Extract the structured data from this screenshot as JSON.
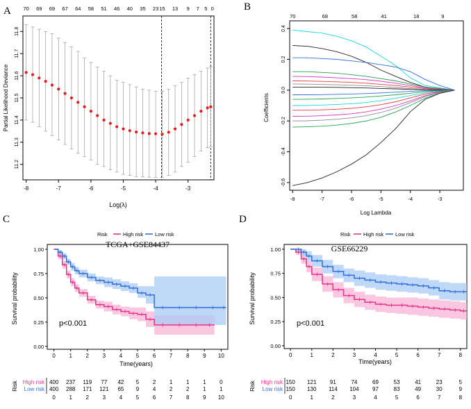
{
  "colors": {
    "high_risk": "#E8308C",
    "low_risk": "#2F6FD8",
    "high_band": "#F7B6D6",
    "low_band": "#A9CBF5",
    "overlap": "#B9A7E3",
    "cv_points": "#E41A1C"
  },
  "panels": {
    "a": "A",
    "b": "B",
    "c": "C",
    "d": "D"
  },
  "chart_data": [
    {
      "panel": "A",
      "type": "scatter",
      "xlabel": "Log(λ)",
      "ylabel": "Partial Likelihood Deviance",
      "xlim": [
        -8.1,
        -2.2
      ],
      "ylim": [
        11.13,
        11.87
      ],
      "xticks": [
        -8,
        -7,
        -6,
        -5,
        -4,
        -3
      ],
      "yticks": [
        11.2,
        11.3,
        11.4,
        11.5,
        11.6,
        11.7,
        11.8
      ],
      "top_axis_values": [
        -8.0,
        -7.6,
        -7.2,
        -6.8,
        -6.4,
        -6.0,
        -5.6,
        -5.2,
        -4.8,
        -4.4,
        -4.0,
        -3.6,
        -3.2,
        -2.8,
        -2.45
      ],
      "top_axis_labels": [
        "70",
        "69",
        "69",
        "67",
        "64",
        "58",
        "51",
        "46",
        "40",
        "35",
        "23",
        "15",
        "13",
        "9",
        "7",
        "5",
        "0"
      ],
      "top_axis_positions": [
        -8.0,
        -7.6,
        -7.2,
        -6.8,
        -6.4,
        -6.0,
        -5.6,
        -5.2,
        -4.8,
        -4.4,
        -4.0,
        -3.8,
        -3.4,
        -3.0,
        -2.7,
        -2.45,
        -2.25
      ],
      "vlines": [
        -3.82,
        -2.3
      ],
      "x": [
        -8.0,
        -7.8,
        -7.6,
        -7.4,
        -7.2,
        -7.0,
        -6.8,
        -6.6,
        -6.4,
        -6.2,
        -6.0,
        -5.8,
        -5.6,
        -5.4,
        -5.2,
        -5.0,
        -4.8,
        -4.6,
        -4.4,
        -4.2,
        -4.0,
        -3.8,
        -3.6,
        -3.4,
        -3.2,
        -3.0,
        -2.8,
        -2.6,
        -2.4,
        -2.3
      ],
      "y": [
        11.615,
        11.605,
        11.59,
        11.575,
        11.558,
        11.54,
        11.52,
        11.5,
        11.48,
        11.46,
        11.44,
        11.42,
        11.4,
        11.385,
        11.37,
        11.36,
        11.352,
        11.346,
        11.342,
        11.339,
        11.338,
        11.336,
        11.345,
        11.36,
        11.38,
        11.4,
        11.42,
        11.44,
        11.455,
        11.46
      ],
      "ci_upper": [
        11.83,
        11.82,
        11.81,
        11.8,
        11.79,
        11.77,
        11.75,
        11.73,
        11.71,
        11.68,
        11.66,
        11.64,
        11.62,
        11.6,
        11.58,
        11.57,
        11.56,
        11.55,
        11.54,
        11.535,
        11.53,
        11.53,
        11.54,
        11.555,
        11.57,
        11.59,
        11.605,
        11.62,
        11.635,
        11.64
      ],
      "ci_lower": [
        11.4,
        11.39,
        11.37,
        11.35,
        11.33,
        11.31,
        11.29,
        11.27,
        11.25,
        11.235,
        11.22,
        11.2,
        11.19,
        11.175,
        11.165,
        11.155,
        11.15,
        11.145,
        11.143,
        11.142,
        11.141,
        11.14,
        11.15,
        11.165,
        11.19,
        11.21,
        11.235,
        11.26,
        11.275,
        11.28
      ]
    },
    {
      "panel": "B",
      "type": "line",
      "xlabel": "Log Lambda",
      "ylabel": "Coefficients",
      "xlim": [
        -8.1,
        -2.2
      ],
      "ylim": [
        -0.65,
        0.45
      ],
      "xticks": [
        -8,
        -7,
        -6,
        -5,
        -4,
        -3
      ],
      "yticks": [
        -0.6,
        -0.4,
        -0.2,
        0.0,
        0.2,
        0.4
      ],
      "top_axis_labels": [
        "70",
        "68",
        "58",
        "41",
        "18",
        "9"
      ],
      "top_axis_positions": [
        -8.0,
        -6.9,
        -5.9,
        -4.9,
        -3.8,
        -2.9
      ],
      "x": [
        -8.0,
        -7.5,
        -7.0,
        -6.5,
        -6.0,
        -5.5,
        -5.0,
        -4.5,
        -4.0,
        -3.5,
        -3.0,
        -2.5
      ],
      "series": [
        {
          "name": "cyan",
          "color": "#18D5E8",
          "values": [
            0.39,
            0.38,
            0.37,
            0.35,
            0.32,
            0.28,
            0.22,
            0.16,
            0.08,
            0.03,
            0.015,
            0.0
          ]
        },
        {
          "name": "black-top",
          "color": "#222222",
          "values": [
            0.29,
            0.285,
            0.27,
            0.25,
            0.22,
            0.18,
            0.13,
            0.09,
            0.05,
            0.02,
            0.01,
            0.0
          ]
        },
        {
          "name": "blue",
          "color": "#2F6FD8",
          "values": [
            0.21,
            0.21,
            0.205,
            0.2,
            0.19,
            0.18,
            0.165,
            0.15,
            0.12,
            0.07,
            0.03,
            0.0
          ]
        },
        {
          "name": "green",
          "color": "#22A24A",
          "values": [
            0.12,
            0.12,
            0.115,
            0.11,
            0.1,
            0.09,
            0.075,
            0.06,
            0.04,
            0.02,
            0.01,
            0.0
          ]
        },
        {
          "name": "magenta",
          "color": "#D630C8",
          "values": [
            0.09,
            0.088,
            0.085,
            0.08,
            0.075,
            0.068,
            0.058,
            0.045,
            0.03,
            0.015,
            0.006,
            0.0
          ]
        },
        {
          "name": "red",
          "color": "#E03A3A",
          "values": [
            0.06,
            0.059,
            0.057,
            0.054,
            0.05,
            0.045,
            0.038,
            0.03,
            0.02,
            0.01,
            0.004,
            0.0
          ]
        },
        {
          "name": "gray",
          "color": "#8A8A8A",
          "values": [
            0.04,
            0.039,
            0.037,
            0.035,
            0.032,
            0.028,
            0.023,
            0.017,
            0.01,
            0.005,
            0.002,
            0.0
          ]
        },
        {
          "name": "black-mid",
          "color": "#222222",
          "values": [
            0.02,
            0.02,
            0.019,
            0.018,
            0.016,
            0.014,
            0.011,
            0.008,
            0.005,
            0.002,
            0.001,
            0.0
          ]
        },
        {
          "name": "blue-low",
          "color": "#2F6FD8",
          "values": [
            -0.03,
            -0.03,
            -0.029,
            -0.027,
            -0.025,
            -0.022,
            -0.018,
            -0.013,
            -0.008,
            -0.004,
            -0.002,
            0.0
          ]
        },
        {
          "name": "green-low",
          "color": "#22A24A",
          "values": [
            -0.06,
            -0.059,
            -0.057,
            -0.054,
            -0.05,
            -0.045,
            -0.038,
            -0.03,
            -0.02,
            -0.01,
            -0.004,
            0.0
          ]
        },
        {
          "name": "cyan-low",
          "color": "#18D5E8",
          "values": [
            -0.1,
            -0.099,
            -0.097,
            -0.093,
            -0.088,
            -0.08,
            -0.068,
            -0.053,
            -0.035,
            -0.018,
            -0.007,
            0.0
          ]
        },
        {
          "name": "red-low",
          "color": "#E03A3A",
          "values": [
            -0.13,
            -0.13,
            -0.128,
            -0.124,
            -0.118,
            -0.108,
            -0.094,
            -0.075,
            -0.05,
            -0.025,
            -0.01,
            0.0
          ]
        },
        {
          "name": "magenta-low",
          "color": "#D630C8",
          "values": [
            -0.17,
            -0.169,
            -0.166,
            -0.161,
            -0.153,
            -0.141,
            -0.123,
            -0.1,
            -0.07,
            -0.036,
            -0.013,
            0.0
          ]
        },
        {
          "name": "gray-low",
          "color": "#8A8A8A",
          "values": [
            -0.2,
            -0.199,
            -0.195,
            -0.189,
            -0.18,
            -0.166,
            -0.145,
            -0.117,
            -0.081,
            -0.042,
            -0.015,
            0.0
          ]
        },
        {
          "name": "green-bottom",
          "color": "#22A24A",
          "values": [
            -0.24,
            -0.238,
            -0.234,
            -0.227,
            -0.216,
            -0.2,
            -0.176,
            -0.142,
            -0.1,
            -0.052,
            -0.019,
            0.0
          ]
        },
        {
          "name": "black-bottom",
          "color": "#222222",
          "values": [
            -0.62,
            -0.6,
            -0.57,
            -0.53,
            -0.48,
            -0.42,
            -0.34,
            -0.25,
            -0.14,
            -0.06,
            -0.02,
            0.0
          ]
        }
      ]
    },
    {
      "panel": "C",
      "type": "line",
      "title": "TCGA+GSE84437",
      "xlabel": "Time(years)",
      "ylabel": "Survival probability",
      "xlim": [
        -0.4,
        10.4
      ],
      "ylim": [
        -0.03,
        1.05
      ],
      "xticks": [
        0,
        1,
        2,
        3,
        4,
        5,
        6,
        7,
        8,
        9,
        10
      ],
      "yticks": [
        "0.00",
        "0.25",
        "0.50",
        "0.75",
        "1.00"
      ],
      "legend": {
        "title": "Risk",
        "entries": [
          "High risk",
          "Low risk"
        ]
      },
      "pvalue": "p<0.001",
      "series": [
        {
          "name": "High risk",
          "x": [
            0,
            0.25,
            0.5,
            0.75,
            1,
            1.25,
            1.5,
            2,
            2.5,
            3,
            3.5,
            4,
            4.5,
            5,
            5.5,
            6,
            7,
            8,
            9,
            9.6
          ],
          "values": [
            1.0,
            0.93,
            0.84,
            0.74,
            0.66,
            0.6,
            0.55,
            0.48,
            0.43,
            0.41,
            0.38,
            0.36,
            0.34,
            0.33,
            0.28,
            0.22,
            0.22,
            0.22,
            0.22,
            0.22
          ],
          "lower": [
            1.0,
            0.9,
            0.8,
            0.7,
            0.62,
            0.56,
            0.51,
            0.44,
            0.39,
            0.36,
            0.33,
            0.31,
            0.28,
            0.26,
            0.2,
            0.12,
            0.12,
            0.12,
            0.12,
            0.12
          ],
          "upper": [
            1.0,
            0.96,
            0.88,
            0.78,
            0.7,
            0.64,
            0.59,
            0.52,
            0.47,
            0.46,
            0.43,
            0.41,
            0.4,
            0.4,
            0.36,
            0.32,
            0.32,
            0.32,
            0.32,
            0.32
          ]
        },
        {
          "name": "Low risk",
          "x": [
            0,
            0.25,
            0.5,
            0.75,
            1,
            1.25,
            1.5,
            2,
            2.5,
            3,
            3.5,
            4,
            4.5,
            5,
            5.5,
            6,
            7,
            8,
            9,
            10,
            10.3
          ],
          "values": [
            1.0,
            0.97,
            0.93,
            0.87,
            0.82,
            0.78,
            0.75,
            0.71,
            0.68,
            0.66,
            0.64,
            0.62,
            0.6,
            0.55,
            0.53,
            0.4,
            0.4,
            0.4,
            0.4,
            0.4,
            0.4
          ],
          "lower": [
            1.0,
            0.95,
            0.9,
            0.84,
            0.78,
            0.74,
            0.71,
            0.67,
            0.64,
            0.61,
            0.59,
            0.57,
            0.55,
            0.5,
            0.44,
            0.22,
            0.22,
            0.22,
            0.22,
            0.22,
            0.22
          ],
          "upper": [
            1.0,
            0.99,
            0.96,
            0.9,
            0.86,
            0.82,
            0.79,
            0.75,
            0.72,
            0.71,
            0.69,
            0.67,
            0.65,
            0.62,
            0.62,
            0.72,
            0.72,
            0.72,
            0.72,
            0.72,
            0.72
          ]
        }
      ],
      "risk_table": {
        "label": "Risk",
        "times": [
          0,
          1,
          2,
          3,
          4,
          5,
          6,
          7,
          8,
          9,
          10
        ],
        "rows": [
          {
            "name": "High risk",
            "values": [
              "400",
              "237",
              "119",
              "77",
              "42",
              "5",
              "2",
              "1",
              "1",
              "1",
              "0"
            ]
          },
          {
            "name": "Low risk",
            "values": [
              "400",
              "288",
              "171",
              "121",
              "65",
              "9",
              "4",
              "2",
              "2",
              "1",
              "1"
            ]
          }
        ]
      }
    },
    {
      "panel": "D",
      "type": "line",
      "title": "GSE66229",
      "xlabel": "Time(years)",
      "ylabel": "Survival probability",
      "xlim": [
        -0.3,
        8.3
      ],
      "ylim": [
        -0.03,
        1.05
      ],
      "xticks": [
        0,
        1,
        2,
        3,
        4,
        5,
        6,
        7,
        8
      ],
      "yticks": [
        "0.00",
        "0.25",
        "0.50",
        "0.75",
        "1.00"
      ],
      "legend": {
        "title": "Risk",
        "entries": [
          "High risk",
          "Low risk"
        ]
      },
      "pvalue": "p<0.001",
      "series": [
        {
          "name": "High risk",
          "x": [
            0,
            0.25,
            0.5,
            0.75,
            1,
            1.5,
            2,
            2.5,
            3,
            3.5,
            4,
            4.5,
            5,
            5.5,
            6,
            6.5,
            7,
            7.5,
            8,
            8.3
          ],
          "values": [
            1.0,
            0.97,
            0.9,
            0.82,
            0.74,
            0.64,
            0.58,
            0.52,
            0.48,
            0.45,
            0.43,
            0.42,
            0.42,
            0.41,
            0.4,
            0.39,
            0.38,
            0.37,
            0.36,
            0.36
          ],
          "lower": [
            1.0,
            0.94,
            0.85,
            0.76,
            0.67,
            0.56,
            0.5,
            0.44,
            0.4,
            0.37,
            0.35,
            0.34,
            0.33,
            0.32,
            0.31,
            0.3,
            0.29,
            0.28,
            0.27,
            0.27
          ],
          "upper": [
            1.0,
            1.0,
            0.95,
            0.88,
            0.81,
            0.72,
            0.66,
            0.6,
            0.56,
            0.53,
            0.51,
            0.5,
            0.5,
            0.5,
            0.49,
            0.48,
            0.47,
            0.46,
            0.45,
            0.45
          ]
        },
        {
          "name": "Low risk",
          "x": [
            0,
            0.25,
            0.5,
            0.75,
            1,
            1.5,
            2,
            2.5,
            3,
            3.5,
            4,
            4.5,
            5,
            5.5,
            6,
            6.5,
            7,
            7.5,
            8,
            8.3
          ],
          "values": [
            1.0,
            1.0,
            0.97,
            0.93,
            0.88,
            0.82,
            0.77,
            0.73,
            0.7,
            0.68,
            0.66,
            0.65,
            0.64,
            0.63,
            0.62,
            0.6,
            0.57,
            0.56,
            0.56,
            0.56
          ],
          "lower": [
            1.0,
            0.98,
            0.93,
            0.88,
            0.82,
            0.75,
            0.7,
            0.66,
            0.62,
            0.6,
            0.58,
            0.57,
            0.56,
            0.55,
            0.54,
            0.52,
            0.48,
            0.47,
            0.47,
            0.47
          ],
          "upper": [
            1.0,
            1.0,
            1.0,
            0.98,
            0.94,
            0.89,
            0.84,
            0.8,
            0.78,
            0.76,
            0.74,
            0.73,
            0.72,
            0.71,
            0.7,
            0.68,
            0.66,
            0.65,
            0.65,
            0.65
          ]
        }
      ],
      "risk_table": {
        "label": "Risk",
        "times": [
          0,
          1,
          2,
          3,
          4,
          5,
          6,
          7,
          8
        ],
        "rows": [
          {
            "name": "High risk",
            "values": [
              "150",
              "121",
              "91",
              "74",
              "69",
              "53",
              "41",
              "23",
              "5"
            ]
          },
          {
            "name": "Low risk",
            "values": [
              "150",
              "130",
              "114",
              "104",
              "97",
              "83",
              "49",
              "30",
              "9"
            ]
          }
        ]
      }
    }
  ]
}
